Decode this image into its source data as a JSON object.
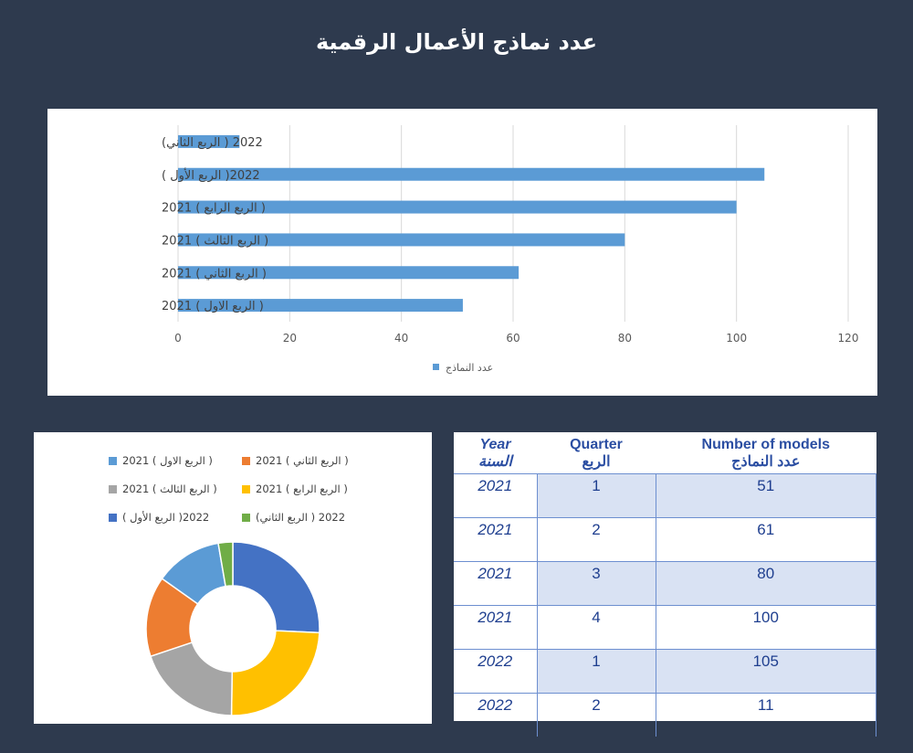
{
  "page_title": "عدد نماذج الأعمال الرقمية",
  "colors": {
    "background": "#2e3a4e",
    "bar": "#5b9bd5",
    "slices": [
      "#5b9bd5",
      "#ed7d31",
      "#a5a5a5",
      "#ffc000",
      "#4472c4",
      "#70ad47"
    ],
    "table_text": "#1f3f8f",
    "table_band": "#d9e2f3"
  },
  "chart_data": [
    {
      "type": "bar",
      "orientation": "horizontal",
      "categories": [
        "( الربع الاول ) 2021",
        "( الربع الثاني ) 2021",
        "( الربع الثالث ) 2021",
        "( الربع الرابع ) 2021",
        "2022( الربع الأول )",
        "2022 ( الربع الثاني)"
      ],
      "series": [
        {
          "name": "عدد النماذج",
          "values": [
            51,
            61,
            80,
            100,
            105,
            11
          ]
        }
      ],
      "xlim": [
        0,
        120
      ],
      "xticks": [
        0,
        20,
        40,
        60,
        80,
        100,
        120
      ],
      "grid": true,
      "legend": "bottom"
    },
    {
      "type": "pie",
      "donut": true,
      "labels": [
        "( الربع الاول ) 2021",
        "( الربع الثاني ) 2021",
        "( الربع الثالث ) 2021",
        "( الربع الرابع ) 2021",
        "2022( الربع الأول )",
        "2022 ( الربع الثاني)"
      ],
      "values": [
        51,
        61,
        80,
        100,
        105,
        11
      ],
      "legend": "top"
    },
    {
      "type": "table",
      "headers": [
        {
          "en": "Year",
          "ar": "السنة"
        },
        {
          "en": "Quarter",
          "ar": "الربع"
        },
        {
          "en": "Number of models",
          "ar": "عدد النماذج"
        }
      ],
      "rows": [
        [
          "2021",
          "1",
          "51"
        ],
        [
          "2021",
          "2",
          "61"
        ],
        [
          "2021",
          "3",
          "80"
        ],
        [
          "2021",
          "4",
          "100"
        ],
        [
          "2022",
          "1",
          "105"
        ],
        [
          "2022",
          "2",
          "11"
        ]
      ]
    }
  ]
}
